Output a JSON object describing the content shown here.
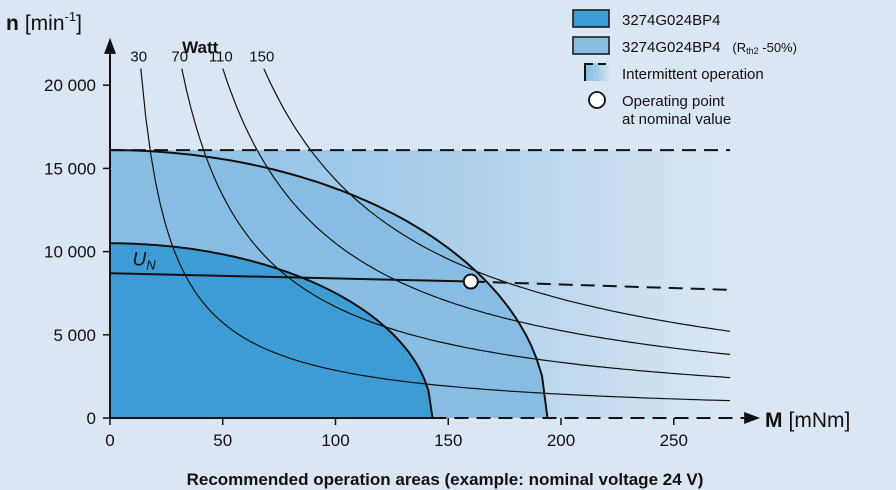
{
  "chart_data": {
    "type": "area",
    "title": "Recommended operation areas (example: nominal voltage 24 V)",
    "xlabel": {
      "symbol": "M",
      "unit": "[mNm]"
    },
    "ylabel": {
      "symbol": "n",
      "unit": "[min",
      "sup": "-1",
      "close": "]"
    },
    "xlim": [
      0,
      275
    ],
    "ylim": [
      0,
      22000
    ],
    "x_ticks": [
      0,
      50,
      100,
      150,
      200,
      250
    ],
    "x_tick_labels": [
      "0",
      "50",
      "100",
      "150",
      "200",
      "250"
    ],
    "y_ticks": [
      0,
      5000,
      10000,
      15000,
      20000
    ],
    "y_tick_labels": [
      "0",
      "5 000",
      "10 000",
      "15 000",
      "20 000"
    ],
    "power_curves_title": "Watt",
    "power_curves": [
      {
        "watt": 30,
        "label": "30"
      },
      {
        "watt": 70,
        "label": "70"
      },
      {
        "watt": 110,
        "label": "110"
      },
      {
        "watt": 150,
        "label": "150"
      }
    ],
    "continuous_area": {
      "name": "3274G024BP4",
      "color": "#3d9cd3",
      "n0": 10500,
      "m_max": 143
    },
    "extended_area": {
      "name": "3274G024BP4 (Rth2 -50%)",
      "color": "#88bde3",
      "n0": 16100,
      "m_max": 194
    },
    "intermittent_area": {
      "name": "Intermittent operation",
      "n_limit": 16100,
      "m_end": 275
    },
    "nominal_line": {
      "label": "U",
      "label_sub": "N",
      "points": [
        [
          0,
          8700
        ],
        [
          160,
          8200
        ],
        [
          275,
          7700
        ]
      ],
      "solid_until": 160
    },
    "operating_point": {
      "name": "Operating point at nominal value",
      "x": 160,
      "y": 8200
    },
    "legend": {
      "placement": "top-right",
      "items": [
        {
          "type": "box",
          "text": "3274G024BP4",
          "color": "#3d9cd3"
        },
        {
          "type": "box",
          "text": "3274G024BP4",
          "sub_text": "(R",
          "sub_sub": "th2",
          "sub_tail": " -50%)",
          "color": "#88bde3"
        },
        {
          "type": "dashed",
          "text": "Intermittent operation"
        },
        {
          "type": "circle",
          "text": "Operating point",
          "text2": "at nominal value"
        }
      ]
    }
  }
}
